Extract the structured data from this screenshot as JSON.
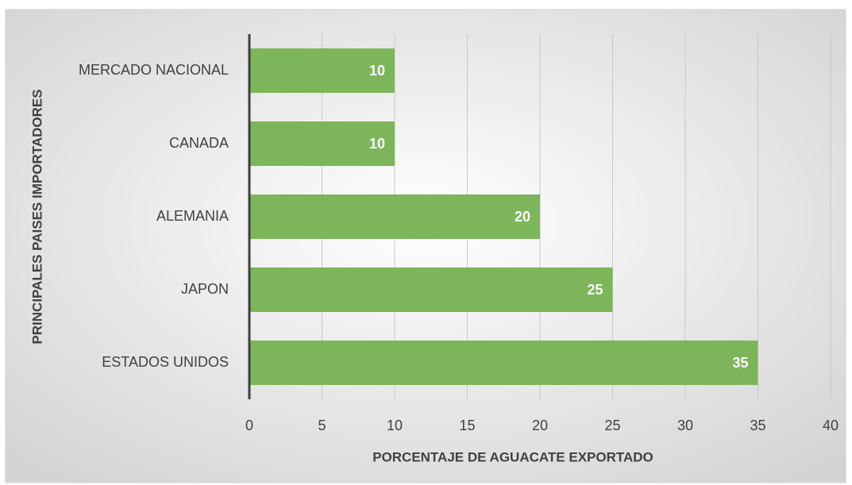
{
  "chart_data": {
    "type": "bar",
    "orientation": "horizontal",
    "x_label": "PORCENTAJE DE AGUACATE EXPORTADO",
    "y_label": "PRINCIPALES PAISES IMPORTADORES",
    "categories": [
      "MERCADO NACIONAL",
      "CANADA",
      "ALEMANIA",
      "JAPON",
      "ESTADOS UNIDOS"
    ],
    "values": [
      10,
      10,
      20,
      25,
      35
    ],
    "color": "#7cb55a",
    "xlim": [
      0,
      40
    ],
    "xticks": [
      0,
      5,
      10,
      15,
      20,
      25,
      30,
      35,
      40
    ],
    "grid": true,
    "data_labels": true
  }
}
